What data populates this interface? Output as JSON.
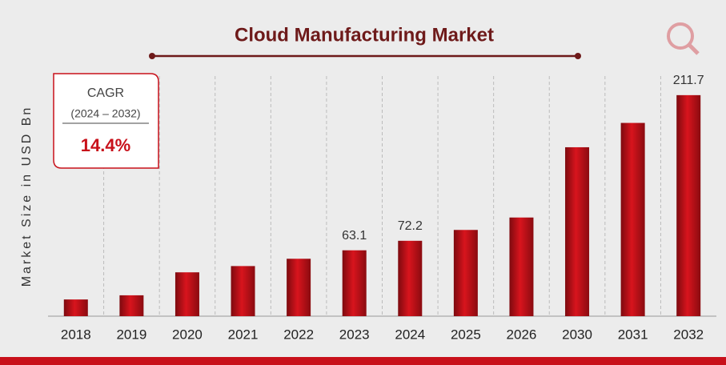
{
  "chart_data": {
    "type": "bar",
    "title": "Cloud Manufacturing Market",
    "y_label": "Market Size in USD Bn",
    "categories": [
      "2018",
      "2019",
      "2020",
      "2021",
      "2022",
      "2023",
      "2024",
      "2025",
      "2026",
      "2030",
      "2031",
      "2032"
    ],
    "values": [
      16,
      20,
      42,
      48,
      55,
      63.1,
      72.2,
      82.6,
      94.5,
      161.8,
      185.1,
      211.7
    ],
    "value_labels": [
      null,
      null,
      null,
      null,
      null,
      "63.1",
      "72.2",
      null,
      null,
      null,
      null,
      "211.7"
    ],
    "color": "#c8101a",
    "ylim": [
      0,
      230
    ],
    "grid": true,
    "annotation": {
      "label": "CAGR",
      "period": "(2024 – 2032)",
      "value": "14.4%"
    }
  }
}
